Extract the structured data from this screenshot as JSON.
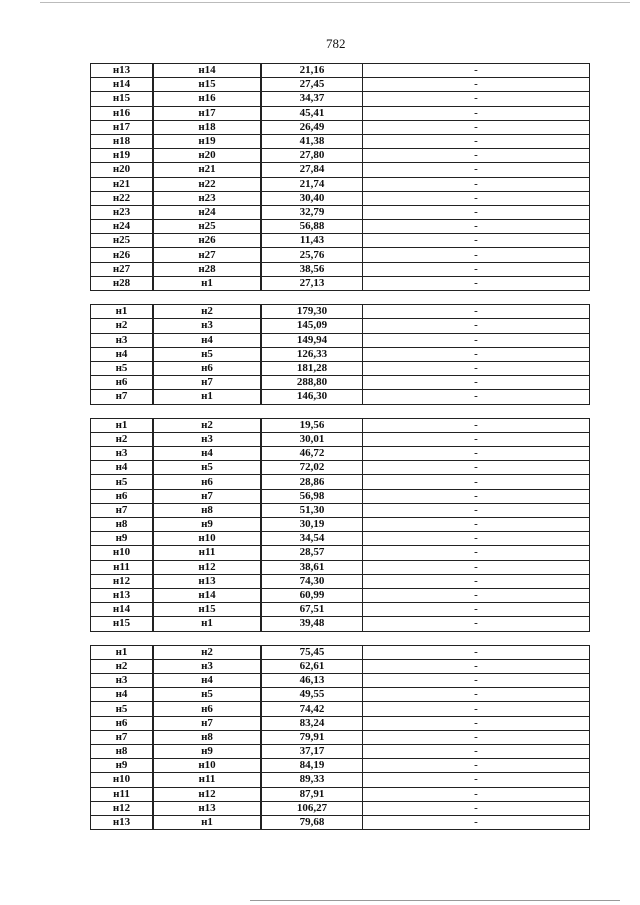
{
  "page_number": "782",
  "sections": [
    {
      "rows": [
        [
          "н13",
          "н14",
          "21,16",
          "-"
        ],
        [
          "н14",
          "н15",
          "27,45",
          "-"
        ],
        [
          "н15",
          "н16",
          "34,37",
          "-"
        ],
        [
          "н16",
          "н17",
          "45,41",
          "-"
        ],
        [
          "н17",
          "н18",
          "26,49",
          "-"
        ],
        [
          "н18",
          "н19",
          "41,38",
          "-"
        ],
        [
          "н19",
          "н20",
          "27,80",
          "-"
        ],
        [
          "н20",
          "н21",
          "27,84",
          "-"
        ],
        [
          "н21",
          "н22",
          "21,74",
          "-"
        ],
        [
          "н22",
          "н23",
          "30,40",
          "-"
        ],
        [
          "н23",
          "н24",
          "32,79",
          "-"
        ],
        [
          "н24",
          "н25",
          "56,88",
          "-"
        ],
        [
          "н25",
          "н26",
          "11,43",
          "-"
        ],
        [
          "н26",
          "н27",
          "25,76",
          "-"
        ],
        [
          "н27",
          "н28",
          "38,56",
          "-"
        ],
        [
          "н28",
          "н1",
          "27,13",
          "-"
        ]
      ]
    },
    {
      "rows": [
        [
          "н1",
          "н2",
          "179,30",
          "-"
        ],
        [
          "н2",
          "н3",
          "145,09",
          "-"
        ],
        [
          "н3",
          "н4",
          "149,94",
          "-"
        ],
        [
          "н4",
          "н5",
          "126,33",
          "-"
        ],
        [
          "н5",
          "н6",
          "181,28",
          "-"
        ],
        [
          "н6",
          "н7",
          "288,80",
          "-"
        ],
        [
          "н7",
          "н1",
          "146,30",
          "-"
        ]
      ]
    },
    {
      "rows": [
        [
          "н1",
          "н2",
          "19,56",
          "-"
        ],
        [
          "н2",
          "н3",
          "30,01",
          "-"
        ],
        [
          "н3",
          "н4",
          "46,72",
          "-"
        ],
        [
          "н4",
          "н5",
          "72,02",
          "-"
        ],
        [
          "н5",
          "н6",
          "28,86",
          "-"
        ],
        [
          "н6",
          "н7",
          "56,98",
          "-"
        ],
        [
          "н7",
          "н8",
          "51,30",
          "-"
        ],
        [
          "н8",
          "н9",
          "30,19",
          "-"
        ],
        [
          "н9",
          "н10",
          "34,54",
          "-"
        ],
        [
          "н10",
          "н11",
          "28,57",
          "-"
        ],
        [
          "н11",
          "н12",
          "38,61",
          "-"
        ],
        [
          "н12",
          "н13",
          "74,30",
          "-"
        ],
        [
          "н13",
          "н14",
          "60,99",
          "-"
        ],
        [
          "н14",
          "н15",
          "67,51",
          "-"
        ],
        [
          "н15",
          "н1",
          "39,48",
          "-"
        ]
      ]
    },
    {
      "rows": [
        [
          "н1",
          "н2",
          "75,45",
          "-"
        ],
        [
          "н2",
          "н3",
          "62,61",
          "-"
        ],
        [
          "н3",
          "н4",
          "46,13",
          "-"
        ],
        [
          "н4",
          "н5",
          "49,55",
          "-"
        ],
        [
          "н5",
          "н6",
          "74,42",
          "-"
        ],
        [
          "н6",
          "н7",
          "83,24",
          "-"
        ],
        [
          "н7",
          "н8",
          "79,91",
          "-"
        ],
        [
          "н8",
          "н9",
          "37,17",
          "-"
        ],
        [
          "н9",
          "н10",
          "84,19",
          "-"
        ],
        [
          "н10",
          "н11",
          "89,33",
          "-"
        ],
        [
          "н11",
          "н12",
          "87,91",
          "-"
        ],
        [
          "н12",
          "н13",
          "106,27",
          "-"
        ],
        [
          "н13",
          "н1",
          "79,68",
          "-"
        ]
      ]
    }
  ]
}
